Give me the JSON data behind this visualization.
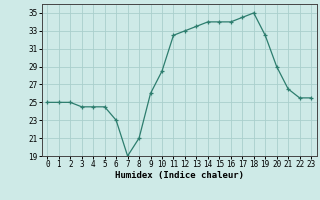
{
  "x": [
    0,
    1,
    2,
    3,
    4,
    5,
    6,
    7,
    8,
    9,
    10,
    11,
    12,
    13,
    14,
    15,
    16,
    17,
    18,
    19,
    20,
    21,
    22,
    23
  ],
  "y": [
    25,
    25,
    25,
    24.5,
    24.5,
    24.5,
    23,
    19,
    21,
    26,
    28.5,
    32.5,
    33,
    33.5,
    34,
    34,
    34,
    34.5,
    35,
    32.5,
    29,
    26.5,
    25.5,
    25.5
  ],
  "line_color": "#2d7d6e",
  "marker": "+",
  "bg_color": "#ceeae7",
  "grid_color": "#aacfcc",
  "xlabel": "Humidex (Indice chaleur)",
  "ylim": [
    19,
    36
  ],
  "yticks": [
    19,
    21,
    23,
    25,
    27,
    29,
    31,
    33,
    35
  ],
  "xlim": [
    -0.5,
    23.5
  ],
  "xticks": [
    0,
    1,
    2,
    3,
    4,
    5,
    6,
    7,
    8,
    9,
    10,
    11,
    12,
    13,
    14,
    15,
    16,
    17,
    18,
    19,
    20,
    21,
    22,
    23
  ]
}
